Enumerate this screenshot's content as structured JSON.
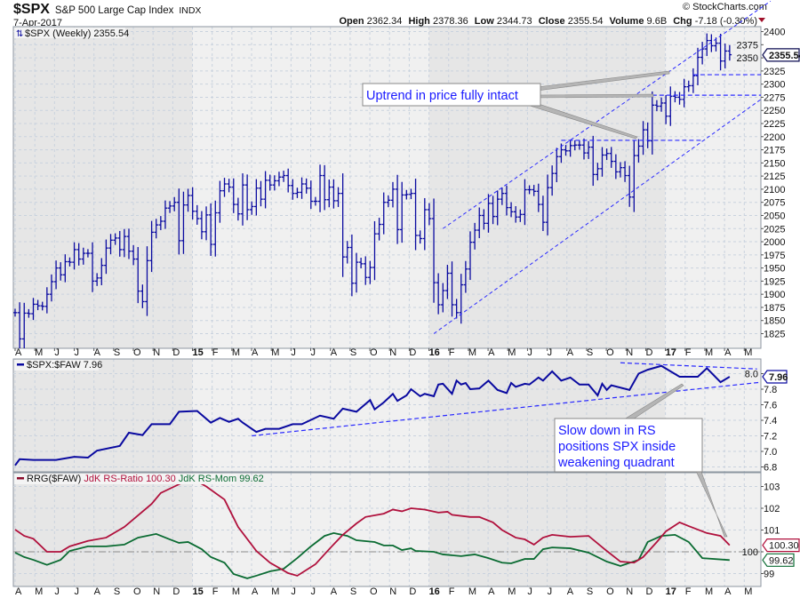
{
  "header": {
    "symbol": "$SPX",
    "name": "S&P 500 Large Cap Index",
    "exchange": "INDX",
    "date": "7-Apr-2017",
    "watermark": "© StockCharts.com",
    "open_label": "Open",
    "open": "2362.34",
    "high_label": "High",
    "high": "2378.36",
    "low_label": "Low",
    "low": "2344.73",
    "close_label": "Close",
    "close": "2355.54",
    "volume_label": "Volume",
    "volume": "9.6B",
    "chg_label": "Chg",
    "chg": "-7.18 (-0.30%)"
  },
  "colors": {
    "price": "#0a0aa0",
    "trend": "#2a2aff",
    "ratio": "#b0103c",
    "mom": "#0a6b32",
    "shade_dark": "#e6e6e6",
    "shade_light": "#f0f0f0"
  },
  "chart_data": [
    {
      "type": "ohlc",
      "title": "$SPX (Weekly) 2355.54",
      "legend": "$SPX (Weekly) 2355.54",
      "last_value_tag": "2355.54",
      "ylim": [
        1812,
        2410
      ],
      "yticks": [
        "1825",
        "1850",
        "1875",
        "1900",
        "1925",
        "1950",
        "1975",
        "2000",
        "2025",
        "2050",
        "2075",
        "2100",
        "2125",
        "2150",
        "2175",
        "2200",
        "2225",
        "2250",
        "2275",
        "2300",
        "2325",
        "2350",
        "2375",
        "2400"
      ],
      "x_unit": "weeks since 4-Apr-2014",
      "close": [
        1865,
        1815,
        1864,
        1863,
        1881,
        1878,
        1877,
        1900,
        1924,
        1950,
        1937,
        1962,
        1961,
        1985,
        1967,
        1978,
        1978,
        1925,
        1931,
        1955,
        1988,
        2003,
        2007,
        1985,
        2010,
        1982,
        1967,
        1906,
        1886,
        1964,
        2018,
        2032,
        2039,
        2064,
        2068,
        2075,
        2002,
        2070,
        2088,
        2058,
        2044,
        2019,
        2051,
        1995,
        2055,
        2097,
        2110,
        2104,
        2071,
        2053,
        2108,
        2061,
        2067,
        2102,
        2081,
        2117,
        2108,
        2116,
        2123,
        2126,
        2107,
        2092,
        2094,
        2110,
        2102,
        2077,
        2077,
        2126,
        2080,
        2104,
        2078,
        2092,
        1971,
        1989,
        1921,
        1961,
        1958,
        1932,
        1951,
        2015,
        2033,
        2075,
        2079,
        2100,
        2023,
        2089,
        2090,
        2092,
        2012,
        2006,
        2061,
        2044,
        1922,
        1880,
        1907,
        1940,
        1880,
        1865,
        1918,
        1948,
        1999,
        2022,
        2050,
        2035,
        2073,
        2048,
        2081,
        2092,
        2065,
        2057,
        2047,
        2052,
        2099,
        2099,
        2096,
        2071,
        2037,
        2103,
        2130,
        2162,
        2175,
        2173,
        2183,
        2184,
        2184,
        2169,
        2180,
        2128,
        2139,
        2165,
        2168,
        2153,
        2133,
        2141,
        2126,
        2085,
        2164,
        2182,
        2213,
        2192,
        2260,
        2258,
        2264,
        2239,
        2277,
        2275,
        2271,
        2295,
        2297,
        2316,
        2351,
        2367,
        2383,
        2373,
        2378,
        2344,
        2363,
        2356
      ],
      "trendlines": [
        {
          "from": [
            94,
            2025
          ],
          "to": [
            166,
            2458
          ]
        },
        {
          "from": [
            92,
            1825
          ],
          "to": [
            164,
            2271
          ]
        }
      ],
      "levels": [
        {
          "from": 149,
          "to": 164,
          "value": 2318
        },
        {
          "from": 140,
          "to": 164,
          "value": 2279
        },
        {
          "from": 120,
          "to": 151,
          "value": 2193
        }
      ]
    },
    {
      "type": "line",
      "legend": "$SPX:$FAW 7.96",
      "last_value_tag": "7.96",
      "yticks": [
        "6.8",
        "7.0",
        "7.2",
        "7.4",
        "7.6",
        "7.8",
        "8.0"
      ],
      "series": [
        {
          "name": "$SPX:$FAW",
          "points": [
            [
              0,
              6.82
            ],
            [
              1,
              6.9
            ],
            [
              4,
              6.89
            ],
            [
              9,
              6.89
            ],
            [
              13,
              6.93
            ],
            [
              16,
              6.92
            ],
            [
              18,
              7.01
            ],
            [
              23,
              7.07
            ],
            [
              25,
              7.24
            ],
            [
              28,
              7.21
            ],
            [
              30,
              7.35
            ],
            [
              34,
              7.35
            ],
            [
              36,
              7.51
            ],
            [
              40,
              7.52
            ],
            [
              43,
              7.37
            ],
            [
              45,
              7.43
            ],
            [
              47,
              7.38
            ],
            [
              49,
              7.42
            ],
            [
              50,
              7.37
            ],
            [
              53,
              7.25
            ],
            [
              55,
              7.29
            ],
            [
              58,
              7.29
            ],
            [
              61,
              7.35
            ],
            [
              63,
              7.35
            ],
            [
              67,
              7.46
            ],
            [
              70,
              7.42
            ],
            [
              72,
              7.55
            ],
            [
              75,
              7.51
            ],
            [
              78,
              7.66
            ],
            [
              79,
              7.54
            ],
            [
              81,
              7.63
            ],
            [
              83,
              7.74
            ],
            [
              84,
              7.65
            ],
            [
              86,
              7.72
            ],
            [
              87,
              7.8
            ],
            [
              89,
              7.71
            ],
            [
              90,
              7.74
            ],
            [
              92,
              7.71
            ],
            [
              93,
              7.86
            ],
            [
              94,
              7.87
            ],
            [
              96,
              7.74
            ],
            [
              97,
              7.91
            ],
            [
              98,
              7.86
            ],
            [
              99,
              7.88
            ],
            [
              100,
              7.8
            ],
            [
              102,
              7.81
            ],
            [
              104,
              7.91
            ],
            [
              106,
              7.79
            ],
            [
              108,
              7.75
            ],
            [
              109,
              7.88
            ],
            [
              110,
              7.83
            ],
            [
              112,
              7.87
            ],
            [
              113,
              7.86
            ],
            [
              115,
              7.95
            ],
            [
              116,
              7.91
            ],
            [
              118,
              8.03
            ],
            [
              120,
              7.91
            ],
            [
              122,
              7.95
            ],
            [
              124,
              7.86
            ],
            [
              126,
              7.86
            ],
            [
              128,
              7.72
            ],
            [
              129,
              7.87
            ],
            [
              130,
              7.79
            ],
            [
              131,
              7.85
            ],
            [
              135,
              7.79
            ],
            [
              137,
              8.0
            ],
            [
              139,
              8.05
            ],
            [
              142,
              8.1
            ],
            [
              144,
              8.03
            ],
            [
              146,
              7.96
            ],
            [
              150,
              7.96
            ],
            [
              152,
              8.07
            ],
            [
              155,
              7.89
            ],
            [
              157,
              7.96
            ]
          ]
        }
      ],
      "trendlines": [
        {
          "from": [
            52,
            7.2
          ],
          "to": [
            164,
            7.89
          ]
        },
        {
          "from": [
            133,
            8.14
          ],
          "to": [
            163,
            8.06
          ]
        }
      ]
    },
    {
      "type": "line",
      "legend_prefix": "RRG($FAW)",
      "legend_ratio": "JdK RS-Ratio 100.30",
      "legend_mom": "JdK RS-Mom 99.62",
      "ratio_tag": "100.30",
      "mom_tag": "99.62",
      "yticks": [
        "99",
        "100",
        "101",
        "102",
        "103"
      ],
      "reference_line": 100,
      "series": [
        {
          "name": "JdK RS-Ratio",
          "points": [
            [
              0,
              101.02
            ],
            [
              2,
              100.73
            ],
            [
              4,
              100.6
            ],
            [
              7,
              100
            ],
            [
              10,
              100
            ],
            [
              12,
              100.25
            ],
            [
              16,
              100.5
            ],
            [
              20,
              100.65
            ],
            [
              24,
              101.14
            ],
            [
              27,
              101.67
            ],
            [
              30,
              102.2
            ],
            [
              32,
              102.7
            ],
            [
              35,
              103.0
            ],
            [
              37,
              103.2
            ],
            [
              39,
              103.35
            ],
            [
              42,
              103.0
            ],
            [
              46,
              102.4
            ],
            [
              49,
              101.14
            ],
            [
              53,
              100.04
            ],
            [
              56,
              99.5
            ],
            [
              60,
              99.02
            ],
            [
              62,
              98.9
            ],
            [
              66,
              99.43
            ],
            [
              69,
              100.12
            ],
            [
              72,
              100.78
            ],
            [
              75,
              101.3
            ],
            [
              77,
              101.6
            ],
            [
              81,
              101.75
            ],
            [
              83,
              101.94
            ],
            [
              85,
              101.86
            ],
            [
              87,
              102.0
            ],
            [
              90,
              101.94
            ],
            [
              93,
              101.8
            ],
            [
              95,
              101.84
            ],
            [
              96,
              101.7
            ],
            [
              100,
              101.6
            ],
            [
              102,
              101.6
            ],
            [
              105,
              101.35
            ],
            [
              107,
              101.0
            ],
            [
              110,
              100.65
            ],
            [
              112,
              100.57
            ],
            [
              114,
              100.33
            ],
            [
              116,
              100.65
            ],
            [
              118,
              100.78
            ],
            [
              122,
              100.69
            ],
            [
              126,
              100.73
            ],
            [
              130,
              100.04
            ],
            [
              133,
              99.55
            ],
            [
              136,
              99.5
            ],
            [
              138,
              99.76
            ],
            [
              141,
              100.45
            ],
            [
              143,
              100.94
            ],
            [
              146,
              101.35
            ],
            [
              148,
              101.18
            ],
            [
              152,
              100.86
            ],
            [
              155,
              100.73
            ],
            [
              157,
              100.3
            ]
          ]
        },
        {
          "name": "JdK RS-Mom",
          "points": [
            [
              0,
              99.96
            ],
            [
              2,
              99.76
            ],
            [
              4,
              99.63
            ],
            [
              7,
              99.4
            ],
            [
              10,
              99.63
            ],
            [
              12,
              100.04
            ],
            [
              16,
              100.25
            ],
            [
              20,
              100.25
            ],
            [
              24,
              100.33
            ],
            [
              27,
              100.65
            ],
            [
              31,
              100.82
            ],
            [
              34,
              100.57
            ],
            [
              36,
              100.41
            ],
            [
              38,
              100.45
            ],
            [
              41,
              100.12
            ],
            [
              43,
              99.76
            ],
            [
              46,
              99.5
            ],
            [
              48,
              98.98
            ],
            [
              51,
              98.78
            ],
            [
              53,
              98.9
            ],
            [
              56,
              99.1
            ],
            [
              59,
              99.22
            ],
            [
              62,
              99.71
            ],
            [
              65,
              100.25
            ],
            [
              68,
              100.73
            ],
            [
              70,
              100.86
            ],
            [
              73,
              100.73
            ],
            [
              75,
              100.53
            ],
            [
              79,
              100.45
            ],
            [
              81,
              100.29
            ],
            [
              83,
              100.29
            ],
            [
              85,
              100.08
            ],
            [
              87,
              100.16
            ],
            [
              88,
              100.04
            ],
            [
              92,
              100.0
            ],
            [
              94,
              99.88
            ],
            [
              98,
              99.8
            ],
            [
              101,
              99.88
            ],
            [
              104,
              99.71
            ],
            [
              107,
              99.5
            ],
            [
              109,
              99.47
            ],
            [
              112,
              99.67
            ],
            [
              114,
              99.67
            ],
            [
              116,
              100.12
            ],
            [
              118,
              100.2
            ],
            [
              122,
              100.16
            ],
            [
              126,
              99.96
            ],
            [
              130,
              99.55
            ],
            [
              133,
              99.35
            ],
            [
              137,
              99.63
            ],
            [
              139,
              100.45
            ],
            [
              142,
              100.73
            ],
            [
              145,
              100.78
            ],
            [
              148,
              100.45
            ],
            [
              151,
              99.71
            ],
            [
              157,
              99.62
            ]
          ]
        }
      ]
    }
  ],
  "x_labels": [
    "A",
    "M",
    "J",
    "J",
    "A",
    "S",
    "O",
    "N",
    "D",
    "15",
    "F",
    "M",
    "A",
    "M",
    "J",
    "J",
    "A",
    "S",
    "O",
    "N",
    "D",
    "16",
    "F",
    "M",
    "A",
    "M",
    "J",
    "J",
    "A",
    "S",
    "O",
    "N",
    "D",
    "17",
    "F",
    "M",
    "A",
    "M"
  ],
  "annotations": {
    "price": "Uptrend in price fully intact",
    "rs_line1": "Slow down in RS",
    "rs_line2": "positions SPX inside",
    "rs_line3": "weakening quadrant"
  }
}
